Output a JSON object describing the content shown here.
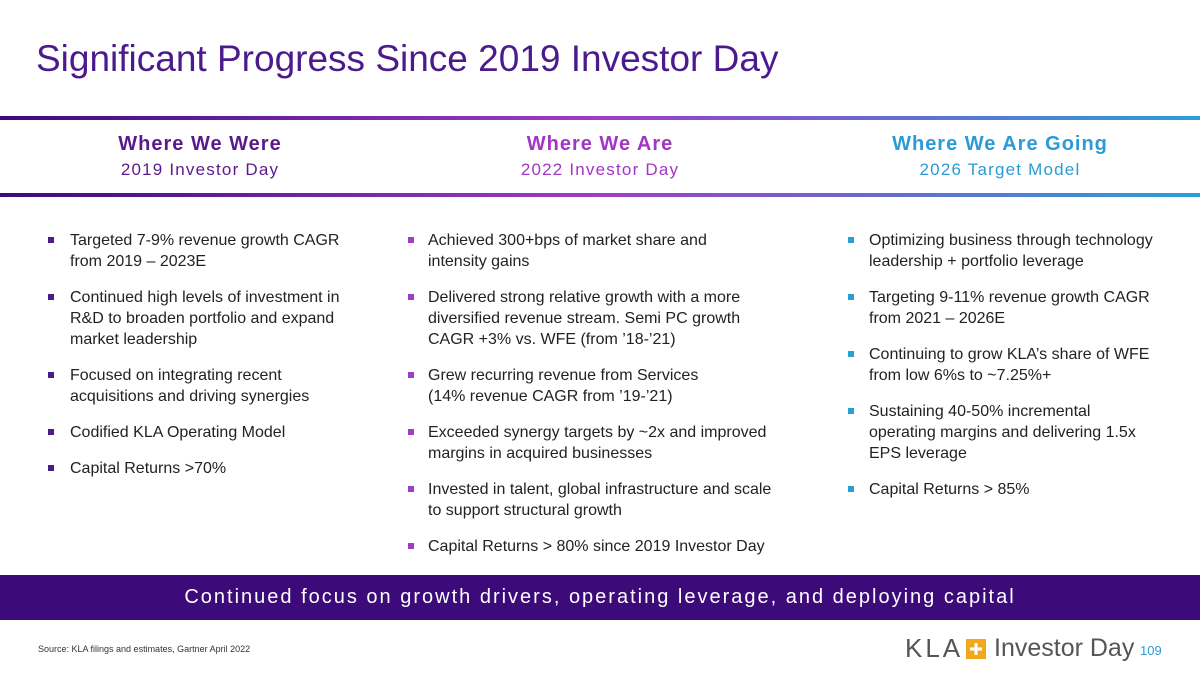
{
  "title": "Significant Progress Since 2019 Investor Day",
  "columns": [
    {
      "heading": "Where We Were",
      "subheading": "2019 Investor Day",
      "color": "#5a1a8c",
      "bullet_color": "#4b1a8c",
      "bullets": [
        [
          "Targeted 7-9% revenue growth CAGR",
          "from 2019 – 2023E"
        ],
        [
          "Continued high levels of investment in",
          "R&D to broaden portfolio and expand",
          "market leadership"
        ],
        [
          "Focused on integrating recent",
          "acquisitions and driving synergies"
        ],
        [
          "Codified KLA Operating Model"
        ],
        [
          "Capital Returns >70%"
        ]
      ]
    },
    {
      "heading": "Where We Are",
      "subheading": "2022 Investor Day",
      "color": "#a335c4",
      "bullet_color": "#a03cc8",
      "bullets": [
        [
          "Achieved 300+bps of market share and",
          "intensity gains"
        ],
        [
          "Delivered strong relative growth with a more",
          "diversified revenue stream. Semi PC growth",
          "CAGR +3% vs. WFE (from ’18-’21)"
        ],
        [
          "Grew recurring revenue from Services",
          "(14% revenue CAGR from ’19-’21)"
        ],
        [
          "Exceeded synergy targets by ~2x and improved",
          "margins in acquired businesses"
        ],
        [
          "Invested in talent, global infrastructure and scale",
          "to support structural growth"
        ],
        [
          "Capital Returns > 80% since 2019 Investor Day"
        ]
      ]
    },
    {
      "heading": "Where We Are Going",
      "subheading": "2026 Target Model",
      "color": "#2a9bd6",
      "bullet_color": "#2a9fd6",
      "bullets": [
        [
          "Optimizing business through technology",
          "leadership + portfolio leverage"
        ],
        [
          "Targeting 9-11% revenue growth CAGR",
          "from 2021 – 2026E"
        ],
        [
          "Continuing to grow KLA’s share of WFE",
          "from low 6%s to ~7.25%+"
        ],
        [
          "Sustaining 40-50% incremental",
          "operating margins and delivering 1.5x",
          "EPS leverage"
        ],
        [
          "Capital Returns > 85%"
        ]
      ]
    }
  ],
  "banner": "Continued focus on growth drivers, operating leverage, and deploying capital",
  "footer": {
    "source": "Source: KLA filings and estimates, Gartner April 2022",
    "brand": "KLA",
    "event": "Investor Day",
    "page": "109"
  }
}
